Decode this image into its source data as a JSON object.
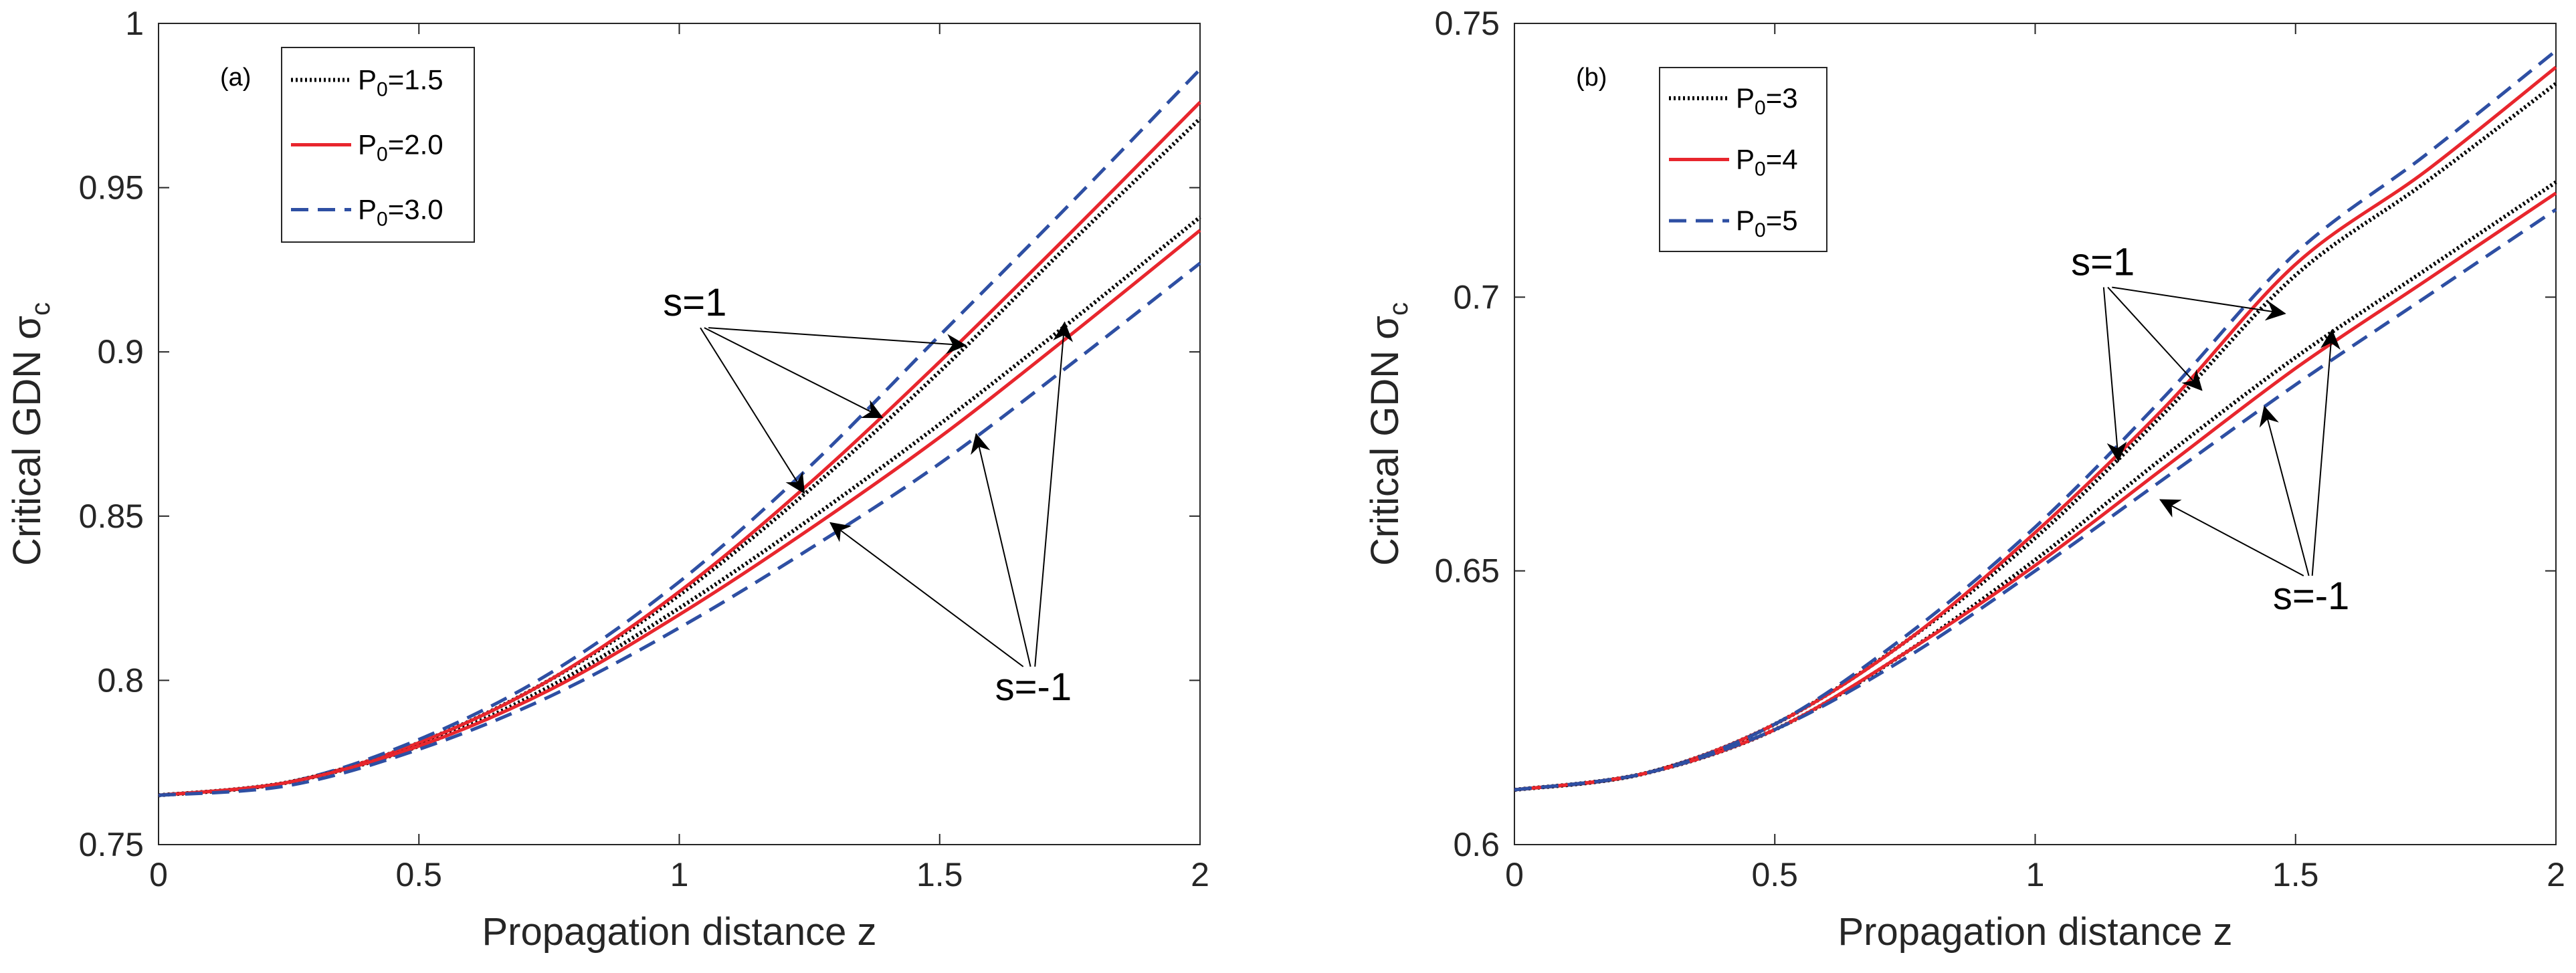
{
  "chart_data": [
    {
      "type": "line",
      "panel_label": "(a)",
      "xlabel": "Propagation distance z",
      "ylabel": "Critical GDN σ",
      "ylabel_sub": "c",
      "xlim": [
        0,
        2
      ],
      "ylim": [
        0.75,
        1.0
      ],
      "xticks": [
        0,
        0.5,
        1,
        1.5,
        2
      ],
      "xtick_labels": [
        "0",
        "0.5",
        "1",
        "1.5",
        "2"
      ],
      "yticks": [
        0.75,
        0.8,
        0.85,
        0.9,
        0.95,
        1.0
      ],
      "ytick_labels": [
        "0.75",
        "0.8",
        "0.85",
        "0.9",
        "0.95",
        "1"
      ],
      "legend_position": "top-left",
      "legend": [
        {
          "prefix": "P",
          "sub": "0",
          "suffix": "=1.5",
          "color": "#000000",
          "style": "dotted"
        },
        {
          "prefix": "P",
          "sub": "0",
          "suffix": "=2.0",
          "color": "#e8262d",
          "style": "solid"
        },
        {
          "prefix": "P",
          "sub": "0",
          "suffix": "=3.0",
          "color": "#2e4fa3",
          "style": "dashed"
        }
      ],
      "x": [
        0.0,
        0.25,
        0.5,
        0.75,
        1.0,
        1.25,
        1.5,
        1.75,
        2.0
      ],
      "series": [
        {
          "name": "P0=1.5, s=1",
          "legend_index": 0,
          "values": [
            0.765,
            0.769,
            0.781,
            0.8,
            0.826,
            0.858,
            0.894,
            0.933,
            0.971
          ]
        },
        {
          "name": "P0=2.0, s=1",
          "legend_index": 1,
          "values": [
            0.765,
            0.769,
            0.781,
            0.8,
            0.827,
            0.86,
            0.897,
            0.936,
            0.976
          ]
        },
        {
          "name": "P0=3.0, s=1",
          "legend_index": 2,
          "values": [
            0.765,
            0.769,
            0.782,
            0.802,
            0.83,
            0.865,
            0.905,
            0.945,
            0.986
          ]
        },
        {
          "name": "P0=1.5, s=-1",
          "legend_index": 0,
          "values": [
            0.765,
            0.769,
            0.78,
            0.798,
            0.822,
            0.849,
            0.878,
            0.909,
            0.941
          ]
        },
        {
          "name": "P0=2.0, s=-1",
          "legend_index": 1,
          "values": [
            0.765,
            0.769,
            0.78,
            0.797,
            0.82,
            0.846,
            0.874,
            0.905,
            0.937
          ]
        },
        {
          "name": "P0=3.0, s=-1",
          "legend_index": 2,
          "values": [
            0.765,
            0.768,
            0.779,
            0.795,
            0.816,
            0.84,
            0.866,
            0.896,
            0.927
          ]
        }
      ],
      "annotations": [
        {
          "text": "s=1",
          "at": [
            1.03,
            0.911
          ],
          "targets": [
            [
              1.24,
              0.857
            ],
            [
              1.39,
              0.88
            ],
            [
              1.55,
              0.902
            ]
          ]
        },
        {
          "text": "s=-1",
          "at": [
            1.68,
            0.794
          ],
          "targets": [
            [
              1.29,
              0.848
            ],
            [
              1.57,
              0.875
            ],
            [
              1.74,
              0.909
            ]
          ]
        }
      ]
    },
    {
      "type": "line",
      "panel_label": "(b)",
      "xlabel": "Propagation distance z",
      "ylabel": "Critical GDN σ",
      "ylabel_sub": "c",
      "xlim": [
        0,
        2
      ],
      "ylim": [
        0.6,
        0.75
      ],
      "xticks": [
        0,
        0.5,
        1,
        1.5,
        2
      ],
      "xtick_labels": [
        "0",
        "0.5",
        "1",
        "1.5",
        "2"
      ],
      "yticks": [
        0.6,
        0.65,
        0.7,
        0.75
      ],
      "ytick_labels": [
        "0.6",
        "0.65",
        "0.7",
        "0.75"
      ],
      "legend_position": "top-left",
      "legend": [
        {
          "prefix": "P",
          "sub": "0",
          "suffix": "=3",
          "color": "#000000",
          "style": "dotted"
        },
        {
          "prefix": "P",
          "sub": "0",
          "suffix": "=4",
          "color": "#e8262d",
          "style": "solid"
        },
        {
          "prefix": "P",
          "sub": "0",
          "suffix": "=5",
          "color": "#2e4fa3",
          "style": "dashed"
        }
      ],
      "x": [
        0.0,
        0.25,
        0.5,
        0.75,
        1.0,
        1.25,
        1.5,
        1.75,
        2.0
      ],
      "series": [
        {
          "name": "P0=3, s=1",
          "legend_index": 0,
          "values": [
            0.61,
            0.613,
            0.622,
            0.637,
            0.656,
            0.679,
            0.704,
            0.721,
            0.739
          ]
        },
        {
          "name": "P0=4, s=1",
          "legend_index": 1,
          "values": [
            0.61,
            0.613,
            0.622,
            0.637,
            0.657,
            0.68,
            0.706,
            0.723,
            0.742
          ]
        },
        {
          "name": "P0=5, s=1",
          "legend_index": 2,
          "values": [
            0.61,
            0.613,
            0.622,
            0.638,
            0.658,
            0.682,
            0.708,
            0.726,
            0.745
          ]
        },
        {
          "name": "P0=3, s=-1",
          "legend_index": 0,
          "values": [
            0.61,
            0.613,
            0.621,
            0.635,
            0.652,
            0.671,
            0.689,
            0.705,
            0.721
          ]
        },
        {
          "name": "P0=4, s=-1",
          "legend_index": 1,
          "values": [
            0.61,
            0.613,
            0.621,
            0.635,
            0.651,
            0.669,
            0.687,
            0.703,
            0.719
          ]
        },
        {
          "name": "P0=5, s=-1",
          "legend_index": 2,
          "values": [
            0.61,
            0.613,
            0.621,
            0.634,
            0.65,
            0.667,
            0.684,
            0.7,
            0.716
          ]
        }
      ],
      "annotations": [
        {
          "text": "s=1",
          "at": [
            1.13,
            0.704
          ],
          "targets": [
            [
              1.16,
              0.67
            ],
            [
              1.32,
              0.683
            ],
            [
              1.48,
              0.697
            ]
          ]
        },
        {
          "text": "s=-1",
          "at": [
            1.53,
            0.643
          ],
          "targets": [
            [
              1.24,
              0.663
            ],
            [
              1.44,
              0.68
            ],
            [
              1.57,
              0.694
            ]
          ]
        }
      ]
    }
  ]
}
